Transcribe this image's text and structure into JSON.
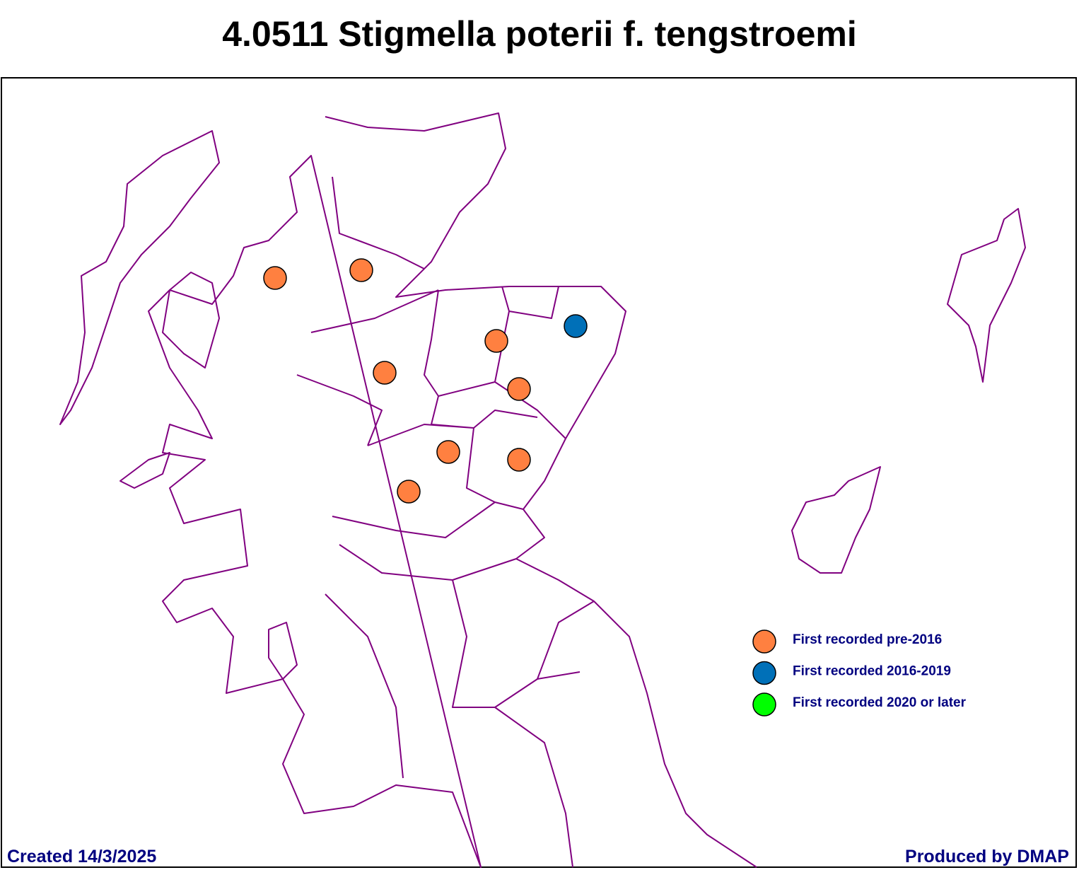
{
  "title": "4.0511 Stigmella poterii f. tengstroemi",
  "legend": [
    {
      "label": "First recorded pre-2016",
      "color": "#ff8040"
    },
    {
      "label": "First recorded 2016-2019",
      "color": "#0070b8"
    },
    {
      "label": "First recorded 2020 or later",
      "color": "#00ff00"
    }
  ],
  "footer": {
    "created": "Created 14/3/2025",
    "producer": "Produced by DMAP"
  }
}
